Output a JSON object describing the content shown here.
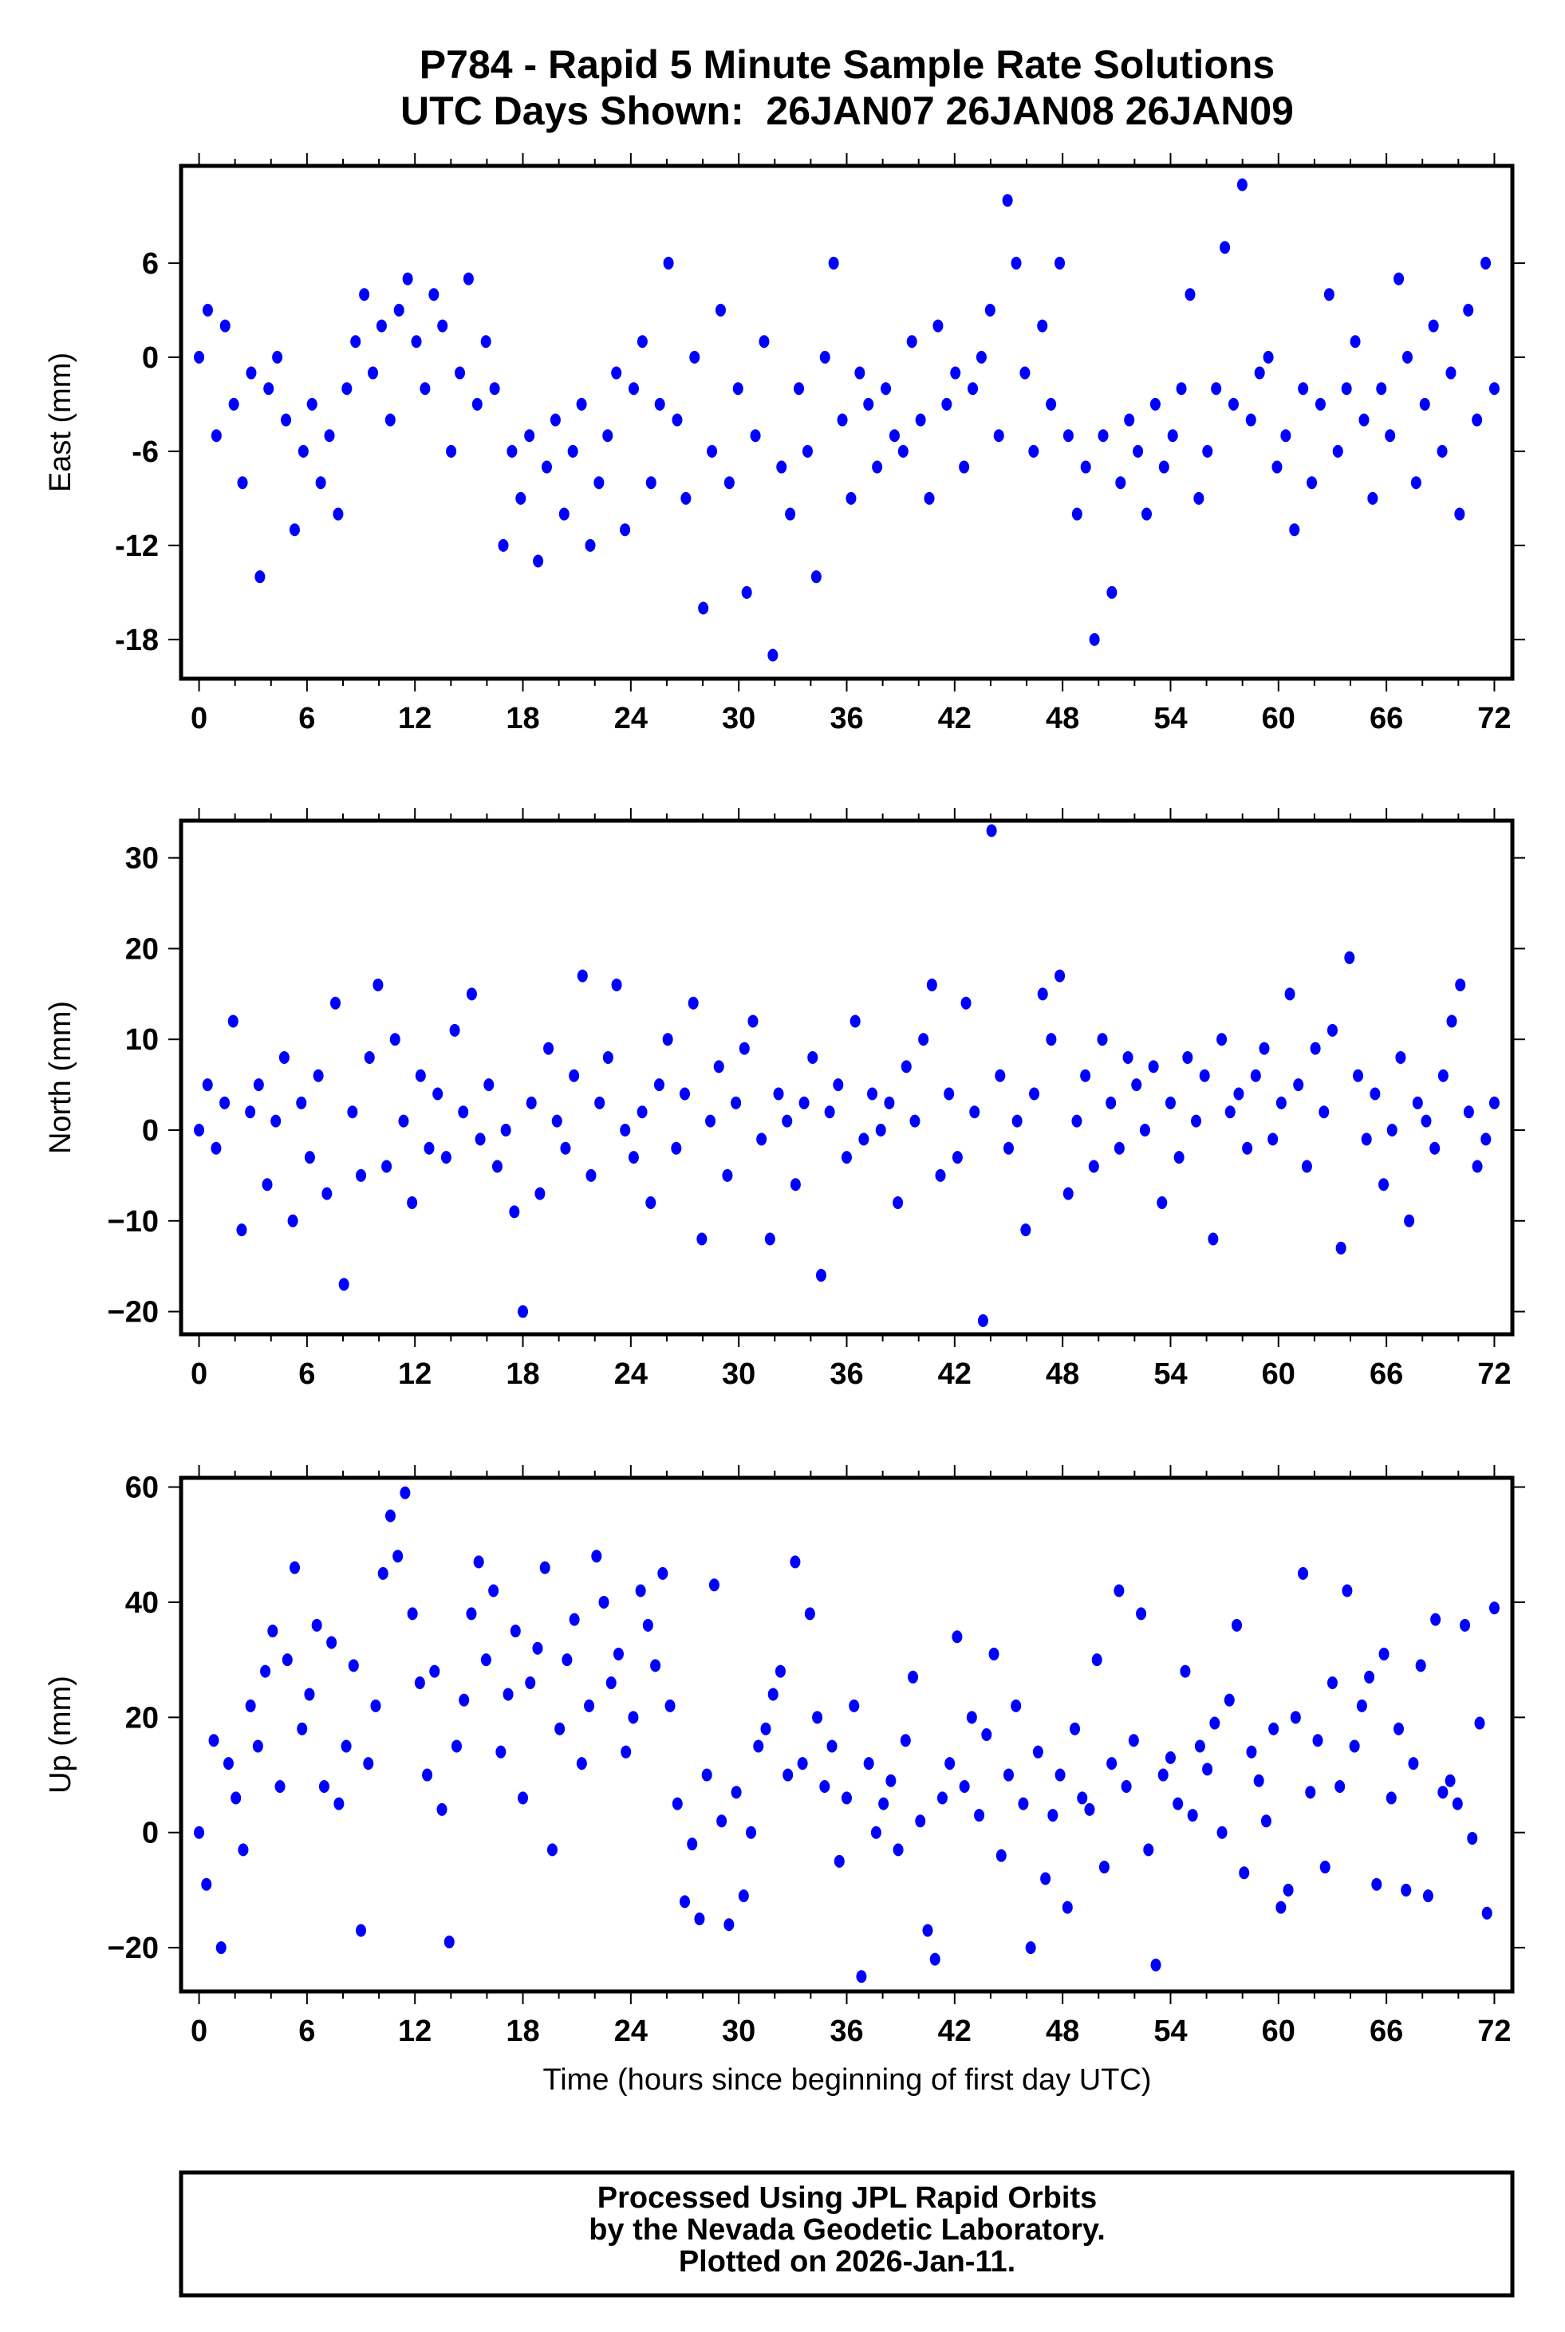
{
  "chart_data": {
    "type": "scatter",
    "title": "P784 - Rapid 5 Minute Sample Rate Solutions",
    "subtitle": "UTC Days Shown:  26JAN07 26JAN08 26JAN09",
    "xlabel": "Time (hours since beginning of first day UTC)",
    "xlim": [
      -1,
      73
    ],
    "x_ticks": [
      "0",
      "6",
      "12",
      "18",
      "24",
      "30",
      "36",
      "42",
      "48",
      "54",
      "60",
      "66",
      "72"
    ],
    "x_tick_values": [
      0,
      6,
      12,
      18,
      24,
      30,
      36,
      42,
      48,
      54,
      60,
      66,
      72
    ],
    "sample_time_range": [
      0,
      72
    ],
    "marker_color": "#0000ff",
    "grid": false,
    "panels": [
      {
        "name": "East",
        "ylabel": "East (mm)",
        "ylim": [
          -20.5,
          12.2
        ],
        "y_tick_values": [
          6,
          0,
          -6,
          -12,
          -18
        ],
        "y_ticks": [
          "6",
          "0",
          "-6",
          "-12",
          "-18"
        ],
        "values": [
          0,
          3,
          -5,
          2,
          -3,
          -8,
          -1,
          -14,
          -2,
          0,
          -4,
          -11,
          -6,
          -3,
          -8,
          -5,
          -10,
          -2,
          1,
          4,
          -1,
          2,
          -4,
          3,
          5,
          1,
          -2,
          4,
          2,
          -6,
          -1,
          5,
          -3,
          1,
          -2,
          -12,
          -6,
          -9,
          -5,
          -13,
          -7,
          -4,
          -10,
          -6,
          -3,
          -12,
          -8,
          -5,
          -1,
          -11,
          -2,
          1,
          -8,
          -3,
          6,
          -4,
          -9,
          0,
          -16,
          -6,
          3,
          -8,
          -2,
          -15,
          -5,
          1,
          -19,
          -7,
          -10,
          -2,
          -6,
          -14,
          0,
          6,
          -4,
          -9,
          -1,
          -3,
          -7,
          -2,
          -5,
          -6,
          1,
          -4,
          -9,
          2,
          -3,
          -1,
          -7,
          -2,
          0,
          3,
          -5,
          10,
          6,
          -1,
          -6,
          2,
          -3,
          6,
          -5,
          -10,
          -7,
          -18,
          -5,
          -15,
          -8,
          -4,
          -6,
          -10,
          -3,
          -7,
          -5,
          -2,
          4,
          -9,
          -6,
          -2,
          7,
          -3,
          11,
          -4,
          -1,
          0,
          -7,
          -5,
          -11,
          -2,
          -8,
          -3,
          4,
          -6,
          -2,
          1,
          -4,
          -9,
          -2,
          -5,
          5,
          0,
          -8,
          -3,
          2,
          -6,
          -1,
          -10,
          3,
          -4,
          6,
          -2
        ]
      },
      {
        "name": "North",
        "ylabel": "North (mm)",
        "ylim": [
          -22.5,
          34.1
        ],
        "y_tick_values": [
          30,
          20,
          10,
          0,
          -10,
          -20
        ],
        "y_ticks": [
          "30",
          "20",
          "10",
          "0",
          "−10",
          "−20"
        ],
        "values": [
          0,
          5,
          -2,
          3,
          12,
          -11,
          2,
          5,
          -6,
          1,
          8,
          -10,
          3,
          -3,
          6,
          -7,
          14,
          -17,
          2,
          -5,
          8,
          16,
          -4,
          10,
          1,
          -8,
          6,
          -2,
          4,
          -3,
          11,
          2,
          15,
          -1,
          5,
          -4,
          0,
          -9,
          -20,
          3,
          -7,
          9,
          1,
          -2,
          6,
          17,
          -5,
          3,
          8,
          16,
          0,
          -3,
          2,
          -8,
          5,
          10,
          -2,
          4,
          14,
          -12,
          1,
          7,
          -5,
          3,
          9,
          12,
          -1,
          -12,
          4,
          1,
          -6,
          3,
          8,
          -16,
          2,
          5,
          -3,
          12,
          -1,
          4,
          0,
          3,
          -8,
          7,
          1,
          10,
          16,
          -5,
          4,
          -3,
          14,
          2,
          -21,
          33,
          6,
          -2,
          1,
          -11,
          4,
          15,
          10,
          17,
          -7,
          1,
          6,
          -4,
          10,
          3,
          -2,
          8,
          5,
          0,
          7,
          -8,
          3,
          -3,
          8,
          1,
          6,
          -12,
          10,
          2,
          4,
          -2,
          6,
          9,
          -1,
          3,
          15,
          5,
          -4,
          9,
          2,
          11,
          -13,
          19,
          6,
          -1,
          4,
          -6,
          0,
          8,
          -10,
          3,
          1,
          -2,
          6,
          12,
          16,
          2,
          -4,
          -1,
          3
        ]
      },
      {
        "name": "Up",
        "ylabel": "Up (mm)",
        "ylim": [
          -27.6,
          61.6
        ],
        "y_tick_values": [
          60,
          40,
          20,
          0,
          -20
        ],
        "y_ticks": [
          "60",
          "40",
          "20",
          "0",
          "−20"
        ],
        "values": [
          0,
          -9,
          16,
          -20,
          12,
          6,
          -3,
          22,
          15,
          28,
          35,
          8,
          30,
          46,
          18,
          24,
          36,
          8,
          33,
          5,
          15,
          29,
          -17,
          12,
          22,
          45,
          55,
          48,
          59,
          38,
          26,
          10,
          28,
          4,
          -19,
          15,
          23,
          38,
          47,
          30,
          42,
          14,
          24,
          35,
          6,
          26,
          32,
          46,
          -3,
          18,
          30,
          37,
          12,
          22,
          48,
          40,
          26,
          31,
          14,
          20,
          42,
          36,
          29,
          45,
          22,
          5,
          -12,
          -2,
          -15,
          10,
          43,
          2,
          -16,
          7,
          -11,
          0,
          15,
          18,
          24,
          28,
          10,
          47,
          12,
          38,
          20,
          8,
          15,
          -5,
          6,
          22,
          -25,
          12,
          0,
          5,
          9,
          -3,
          16,
          27,
          2,
          -17,
          -22,
          6,
          12,
          34,
          8,
          20,
          3,
          17,
          31,
          -4,
          10,
          22,
          5,
          -20,
          14,
          -8,
          3,
          10,
          -13,
          18,
          6,
          4,
          30,
          -6,
          12,
          42,
          8,
          16,
          38,
          -3,
          -23,
          10,
          13,
          5,
          28,
          3,
          15,
          11,
          19,
          0,
          23,
          36,
          -7,
          14,
          9,
          2,
          18,
          -13,
          -10,
          20,
          45,
          7,
          16,
          -6,
          26,
          8,
          42,
          15,
          22,
          27,
          -9,
          31,
          6,
          18,
          -10,
          12,
          29,
          -11,
          37,
          7,
          9,
          5,
          36,
          -1,
          19,
          -14,
          39
        ]
      }
    ]
  },
  "footer": {
    "line1": "Processed Using JPL Rapid Orbits",
    "line2": "by the Nevada Geodetic Laboratory.",
    "line3": "Plotted on 2026-Jan-11."
  }
}
